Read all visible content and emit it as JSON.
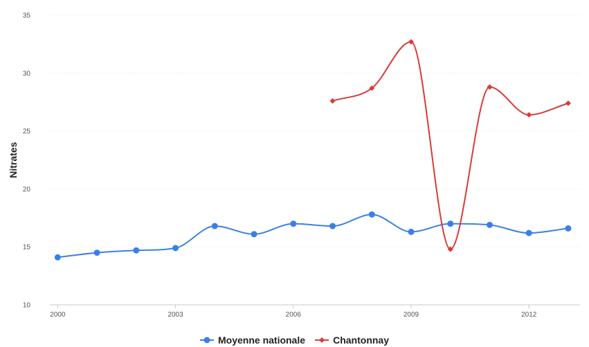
{
  "chart_data": {
    "type": "line",
    "title": "",
    "xlabel": "",
    "ylabel": "Nitrates",
    "x": [
      2000,
      2001,
      2002,
      2003,
      2004,
      2005,
      2006,
      2007,
      2008,
      2009,
      2010,
      2011,
      2012,
      2013
    ],
    "xlim": [
      1999.8,
      2013.3
    ],
    "ylim": [
      10,
      35
    ],
    "y_ticks": [
      10,
      15,
      20,
      25,
      30,
      35
    ],
    "x_ticks": [
      2000,
      2003,
      2006,
      2009,
      2012
    ],
    "grid": true,
    "legend_position": "bottom",
    "series": [
      {
        "name": "Moyenne nationale",
        "color": "#3a7fe6",
        "marker": "circle",
        "values": [
          14.1,
          14.5,
          14.7,
          14.9,
          16.8,
          16.1,
          17.0,
          16.8,
          17.8,
          16.3,
          17.0,
          16.9,
          16.2,
          16.6
        ]
      },
      {
        "name": "Chantonnay",
        "color": "#d93a36",
        "marker": "diamond",
        "values": [
          null,
          null,
          null,
          null,
          null,
          null,
          null,
          27.6,
          28.7,
          32.7,
          14.8,
          28.8,
          26.4,
          27.4
        ]
      }
    ]
  }
}
